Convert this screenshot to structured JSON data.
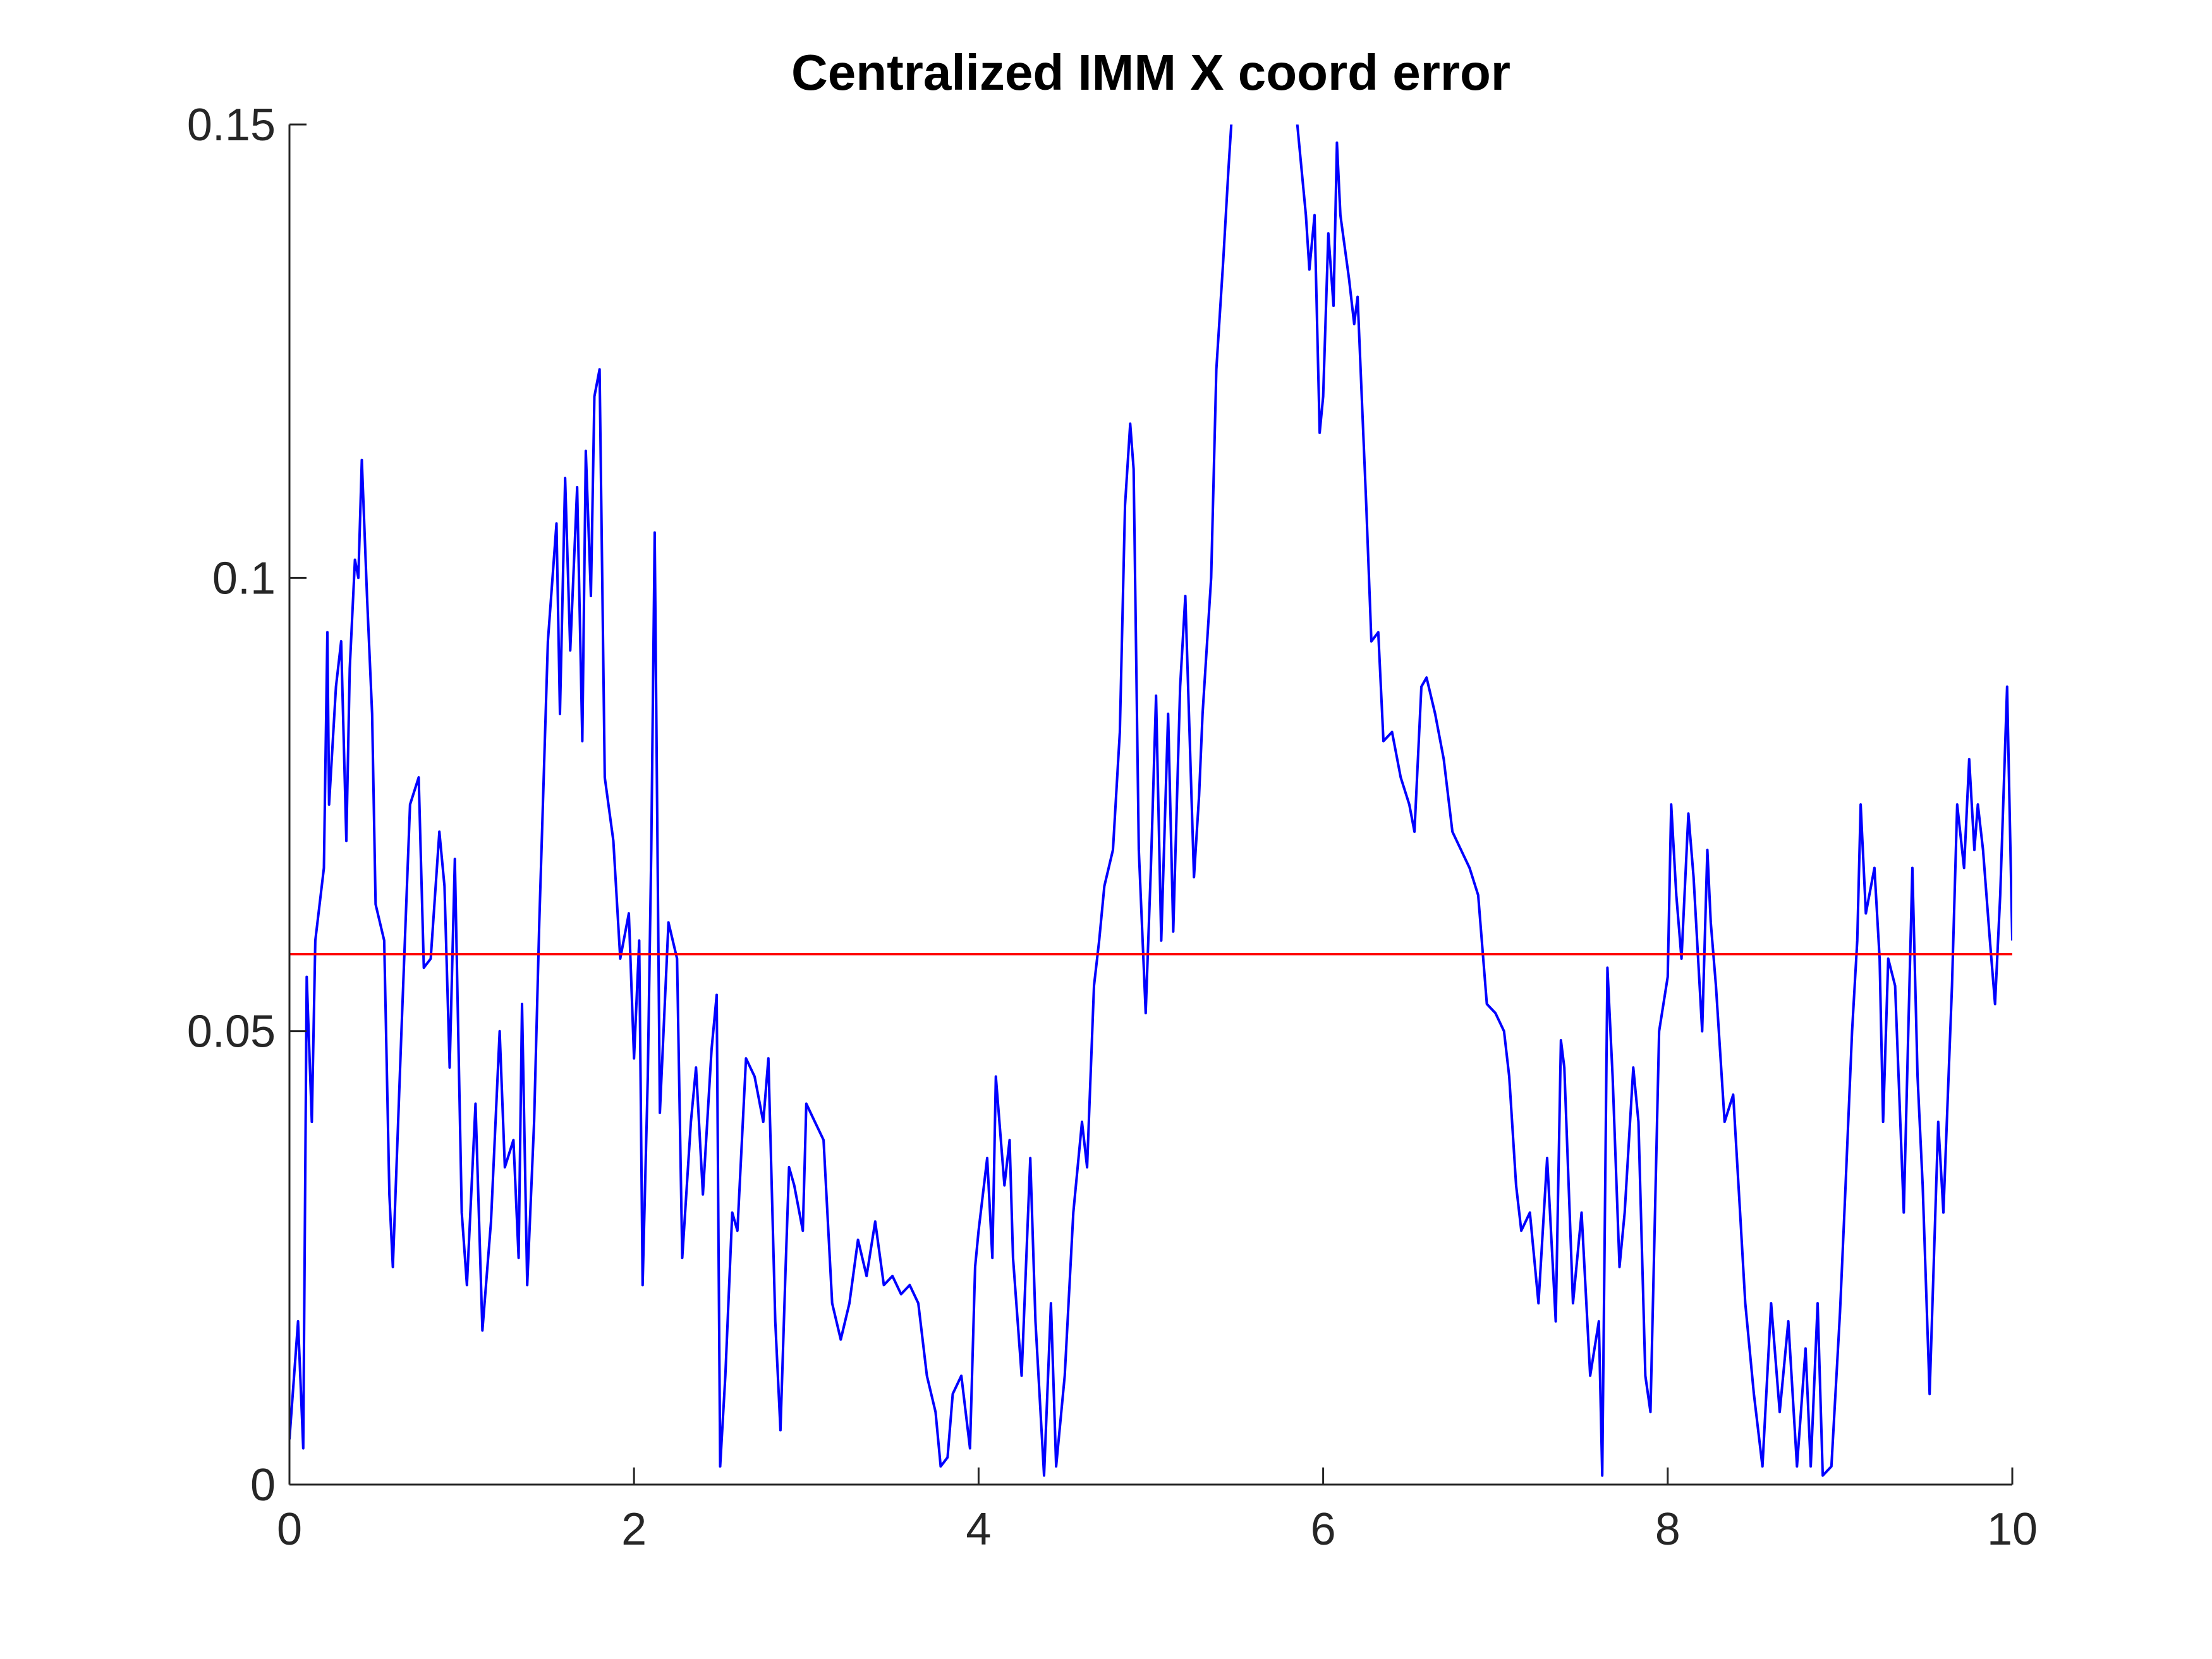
{
  "chart_data": {
    "type": "line",
    "title": "Centralized IMM X coord error",
    "xlim": [
      0,
      10
    ],
    "xticks": [
      0,
      2,
      4,
      6,
      8,
      10
    ],
    "ylim": [
      0,
      0.15
    ],
    "yticks": [
      0,
      0.05,
      0.1,
      0.15
    ],
    "series": [
      {
        "color": "#0000ff",
        "x": [
          0,
          0.05,
          0.08,
          0.1,
          0.13,
          0.15,
          0.2,
          0.22,
          0.23,
          0.27,
          0.3,
          0.33,
          0.35,
          0.38,
          0.4,
          0.42,
          0.45,
          0.48,
          0.5,
          0.55,
          0.58,
          0.6,
          0.65,
          0.7,
          0.75,
          0.78,
          0.82,
          0.87,
          0.9,
          0.93,
          0.96,
          1.0,
          1.03,
          1.08,
          1.12,
          1.17,
          1.22,
          1.25,
          1.3,
          1.33,
          1.35,
          1.38,
          1.42,
          1.45,
          1.5,
          1.55,
          1.57,
          1.6,
          1.63,
          1.67,
          1.7,
          1.72,
          1.75,
          1.77,
          1.8,
          1.83,
          1.88,
          1.92,
          1.97,
          2.0,
          2.03,
          2.05,
          2.08,
          2.1,
          2.12,
          2.15,
          2.2,
          2.25,
          2.28,
          2.33,
          2.36,
          2.4,
          2.45,
          2.48,
          2.5,
          2.53,
          2.57,
          2.6,
          2.65,
          2.7,
          2.75,
          2.78,
          2.82,
          2.85,
          2.88,
          2.9,
          2.93,
          2.98,
          3.0,
          3.05,
          3.1,
          3.15,
          3.2,
          3.25,
          3.3,
          3.35,
          3.4,
          3.45,
          3.5,
          3.55,
          3.6,
          3.65,
          3.7,
          3.75,
          3.78,
          3.82,
          3.85,
          3.9,
          3.95,
          3.98,
          4.0,
          4.05,
          4.08,
          4.1,
          4.15,
          4.18,
          4.2,
          4.25,
          4.3,
          4.33,
          4.38,
          4.42,
          4.45,
          4.5,
          4.55,
          4.6,
          4.63,
          4.67,
          4.7,
          4.73,
          4.78,
          4.82,
          4.85,
          4.88,
          4.9,
          4.93,
          4.97,
          5.0,
          5.03,
          5.06,
          5.1,
          5.13,
          5.17,
          5.2,
          5.25,
          5.28,
          5.3,
          5.35,
          5.38,
          5.42,
          5.45,
          5.5,
          5.6,
          5.7,
          5.8,
          5.9,
          5.92,
          5.95,
          5.98,
          6.0,
          6.03,
          6.06,
          6.08,
          6.1,
          6.15,
          6.18,
          6.2,
          6.25,
          6.28,
          6.32,
          6.35,
          6.4,
          6.45,
          6.5,
          6.53,
          6.57,
          6.6,
          6.65,
          6.7,
          6.75,
          6.8,
          6.85,
          6.9,
          6.95,
          7.0,
          7.05,
          7.08,
          7.12,
          7.15,
          7.2,
          7.25,
          7.3,
          7.35,
          7.38,
          7.4,
          7.45,
          7.5,
          7.55,
          7.6,
          7.62,
          7.65,
          7.68,
          7.72,
          7.75,
          7.8,
          7.83,
          7.87,
          7.9,
          7.95,
          8.0,
          8.02,
          8.05,
          8.08,
          8.12,
          8.15,
          8.2,
          8.23,
          8.25,
          8.28,
          8.33,
          8.38,
          8.42,
          8.45,
          8.5,
          8.55,
          8.6,
          8.65,
          8.7,
          8.75,
          8.8,
          8.83,
          8.87,
          8.9,
          8.95,
          9.0,
          9.03,
          9.07,
          9.1,
          9.12,
          9.15,
          9.2,
          9.23,
          9.25,
          9.28,
          9.32,
          9.37,
          9.42,
          9.45,
          9.48,
          9.52,
          9.57,
          9.6,
          9.65,
          9.68,
          9.72,
          9.75,
          9.78,
          9.8,
          9.83,
          9.87,
          9.9,
          9.93,
          9.97,
          10.0
        ],
        "values": [
          0.005,
          0.018,
          0.004,
          0.056,
          0.04,
          0.06,
          0.068,
          0.094,
          0.075,
          0.088,
          0.093,
          0.071,
          0.09,
          0.102,
          0.1,
          0.113,
          0.098,
          0.085,
          0.064,
          0.06,
          0.032,
          0.024,
          0.05,
          0.075,
          0.078,
          0.057,
          0.058,
          0.072,
          0.066,
          0.046,
          0.069,
          0.03,
          0.022,
          0.042,
          0.017,
          0.029,
          0.05,
          0.035,
          0.038,
          0.025,
          0.053,
          0.022,
          0.04,
          0.062,
          0.093,
          0.106,
          0.085,
          0.111,
          0.092,
          0.11,
          0.082,
          0.114,
          0.098,
          0.12,
          0.123,
          0.078,
          0.071,
          0.058,
          0.063,
          0.047,
          0.06,
          0.022,
          0.045,
          0.07,
          0.105,
          0.041,
          0.062,
          0.058,
          0.025,
          0.04,
          0.046,
          0.032,
          0.048,
          0.054,
          0.002,
          0.012,
          0.03,
          0.028,
          0.047,
          0.045,
          0.04,
          0.047,
          0.018,
          0.006,
          0.024,
          0.035,
          0.033,
          0.028,
          0.042,
          0.04,
          0.038,
          0.02,
          0.016,
          0.02,
          0.027,
          0.023,
          0.029,
          0.022,
          0.023,
          0.021,
          0.022,
          0.02,
          0.012,
          0.008,
          0.002,
          0.003,
          0.01,
          0.012,
          0.004,
          0.024,
          0.028,
          0.036,
          0.025,
          0.045,
          0.033,
          0.038,
          0.025,
          0.012,
          0.036,
          0.018,
          0.001,
          0.02,
          0.002,
          0.012,
          0.03,
          0.04,
          0.035,
          0.055,
          0.06,
          0.066,
          0.07,
          0.083,
          0.108,
          0.117,
          0.112,
          0.07,
          0.052,
          0.068,
          0.087,
          0.06,
          0.085,
          0.061,
          0.088,
          0.098,
          0.067,
          0.076,
          0.085,
          0.1,
          0.123,
          0.135,
          0.145,
          0.16,
          0.17,
          0.17,
          0.16,
          0.14,
          0.134,
          0.14,
          0.116,
          0.12,
          0.138,
          0.13,
          0.148,
          0.14,
          0.133,
          0.128,
          0.131,
          0.108,
          0.093,
          0.094,
          0.082,
          0.083,
          0.078,
          0.075,
          0.072,
          0.088,
          0.089,
          0.085,
          0.08,
          0.072,
          0.07,
          0.068,
          0.065,
          0.053,
          0.052,
          0.05,
          0.045,
          0.033,
          0.028,
          0.03,
          0.02,
          0.036,
          0.018,
          0.049,
          0.046,
          0.02,
          0.03,
          0.012,
          0.018,
          0.001,
          0.057,
          0.045,
          0.024,
          0.03,
          0.046,
          0.04,
          0.012,
          0.008,
          0.05,
          0.056,
          0.075,
          0.065,
          0.058,
          0.074,
          0.067,
          0.05,
          0.07,
          0.062,
          0.055,
          0.04,
          0.043,
          0.03,
          0.02,
          0.01,
          0.002,
          0.02,
          0.008,
          0.018,
          0.002,
          0.015,
          0.002,
          0.02,
          0.001,
          0.002,
          0.019,
          0.032,
          0.05,
          0.06,
          0.075,
          0.063,
          0.068,
          0.058,
          0.04,
          0.058,
          0.055,
          0.03,
          0.068,
          0.045,
          0.033,
          0.01,
          0.04,
          0.03,
          0.055,
          0.075,
          0.068,
          0.08,
          0.07,
          0.075,
          0.07,
          0.06,
          0.053,
          0.065,
          0.088,
          0.06
        ]
      },
      {
        "color": "#ff0000",
        "x": [
          0,
          10
        ],
        "values": [
          0.0585,
          0.0585
        ]
      }
    ]
  }
}
